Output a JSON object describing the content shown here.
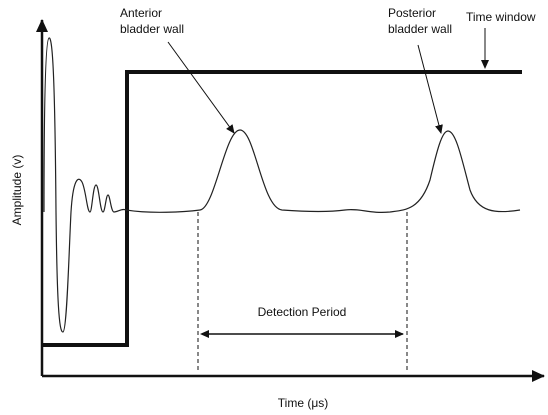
{
  "labels": {
    "anterior": [
      "Anterior",
      "bladder wall"
    ],
    "posterior": [
      "Posterior",
      "bladder wall"
    ],
    "time_window": "Time window",
    "y_axis": "Amplitude (v)",
    "x_axis": "Time (μs)",
    "detection": "Detection Period"
  }
}
